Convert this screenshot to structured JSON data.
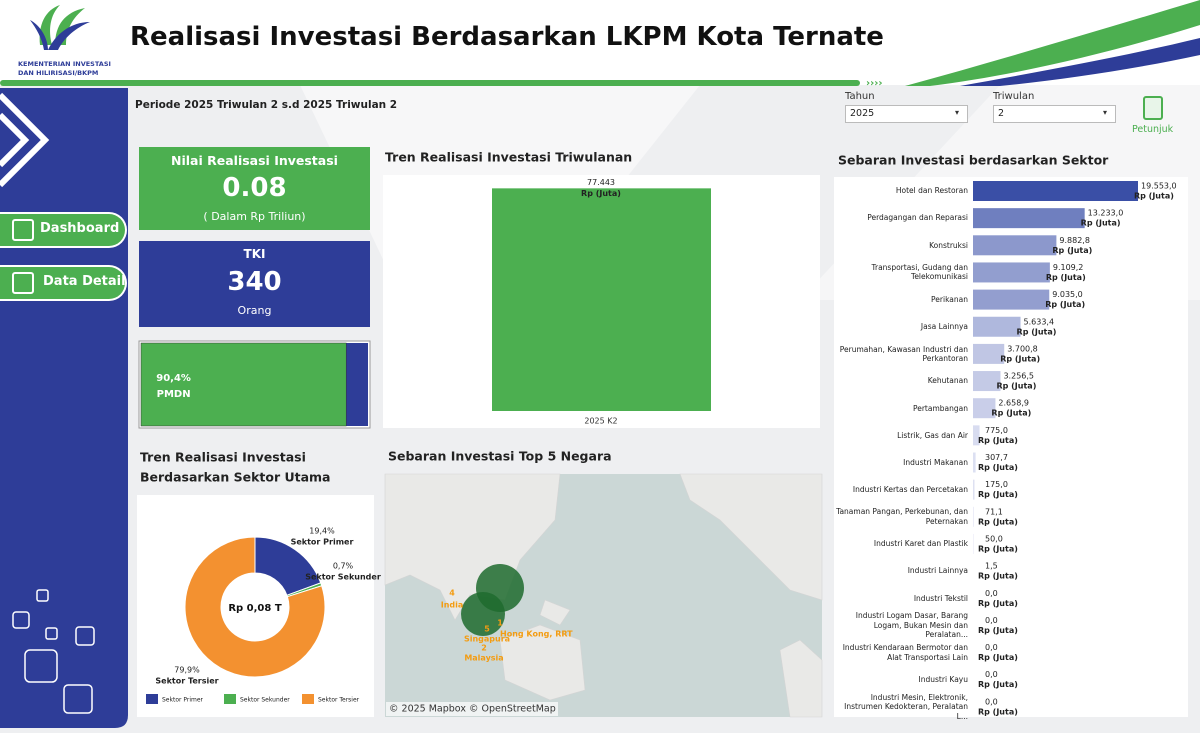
{
  "header": {
    "title": "Realisasi Investasi Berdasarkan LKPM Kota Ternate",
    "logo_lines": [
      "KEMENTERIAN INVESTASI",
      "DAN HILIRISASI/BKPM"
    ]
  },
  "period": "Periode 2025 Triwulan 2 s.d 2025 Triwulan 2",
  "filters": [
    {
      "label": "Tahun",
      "value": "2025"
    },
    {
      "label": "Triwulan",
      "value": "2"
    }
  ],
  "help": "Petunjuk",
  "nav": [
    "Dashboard",
    "Data Detail"
  ],
  "kpis": [
    {
      "title": "Nilai Realisasi Investasi",
      "value": "0.08",
      "unit": "( Dalam Rp Triliun)"
    },
    {
      "title": "TKI",
      "value": "340",
      "unit": "Orang"
    }
  ],
  "share": {
    "type": "bar",
    "name": "PMDN",
    "values": [
      90.4
    ],
    "value_labels": [
      "90,4%"
    ],
    "xlim": [
      0,
      100
    ],
    "color": "#4caf50",
    "rest_color": "#2e3d98"
  },
  "quarterly": {
    "type": "bar",
    "title": "Tren Realisasi Investasi Triwulanan",
    "categories": [
      "2025 K2"
    ],
    "values": [
      77443
    ],
    "value_labels": [
      "77.443"
    ],
    "unit_label": "Rp (Juta)",
    "ylim": [
      0,
      80000
    ],
    "color": "#4caf50"
  },
  "sectors_main": {
    "type": "pie",
    "title": [
      "Tren Realisasi Investasi",
      "Berdasarkan Sektor Utama"
    ],
    "center_label": "Rp 0,08 T",
    "categories": [
      "Sektor Primer",
      "Sektor Sekunder",
      "Sektor Tersier"
    ],
    "values": [
      19.4,
      0.7,
      79.9
    ],
    "value_labels": [
      "19,4%",
      "0,7%",
      "79,9%"
    ],
    "colors": [
      "#2e3d98",
      "#4caf50",
      "#f39130"
    ]
  },
  "map": {
    "title": "Sebaran Investasi Top 5 Negara",
    "points": [
      {
        "rank": "4",
        "label": "India"
      },
      {
        "rank": "5",
        "label": "Singapura"
      },
      {
        "rank": "1",
        "label": "Hong Kong, RRT"
      },
      {
        "rank": "2",
        "label": "Malaysia"
      }
    ],
    "attribution": "© 2025 Mapbox  © OpenStreetMap"
  },
  "sectors": {
    "type": "bar",
    "title": "Sebaran Investasi berdasarkan Sektor",
    "unit_label": "Rp (Juta)",
    "xlim": [
      0,
      19553
    ],
    "color_range": [
      "#3a4fa6",
      "#dfe2f3"
    ],
    "categories": [
      "Hotel dan Restoran",
      "Perdagangan dan Reparasi",
      "Konstruksi",
      "Transportasi, Gudang dan Telekomunikasi",
      "Perikanan",
      "Jasa Lainnya",
      "Perumahan, Kawasan Industri dan Perkantoran",
      "Kehutanan",
      "Pertambangan",
      "Listrik, Gas dan Air",
      "Industri Makanan",
      "Industri Kertas dan Percetakan",
      "Tanaman Pangan, Perkebunan, dan Peternakan",
      "Industri Karet dan Plastik",
      "Industri Lainnya",
      "Industri Tekstil",
      "Industri Logam Dasar, Barang Logam, Bukan Mesin dan Peralatan...",
      "Industri Kendaraan Bermotor dan Alat Transportasi Lain",
      "Industri Kayu",
      "Industri Mesin, Elektronik, Instrumen Kedokteran, Peralatan L..."
    ],
    "values": [
      19553.0,
      13233.0,
      9882.8,
      9109.2,
      9035.0,
      5633.4,
      3700.8,
      3256.5,
      2658.9,
      775.0,
      307.7,
      175.0,
      71.1,
      50.0,
      1.5,
      0,
      0,
      0,
      0,
      0
    ],
    "value_labels": [
      "19.553,0",
      "13.233,0",
      "9.882,8",
      "9.109,2",
      "9.035,0",
      "5.633,4",
      "3.700,8",
      "3.256,5",
      "2.658,9",
      "775,0",
      "307,7",
      "175,0",
      "71,1",
      "50,0",
      "1,5",
      "0,0",
      "0,0",
      "0,0",
      "0,0",
      "0,0"
    ]
  }
}
